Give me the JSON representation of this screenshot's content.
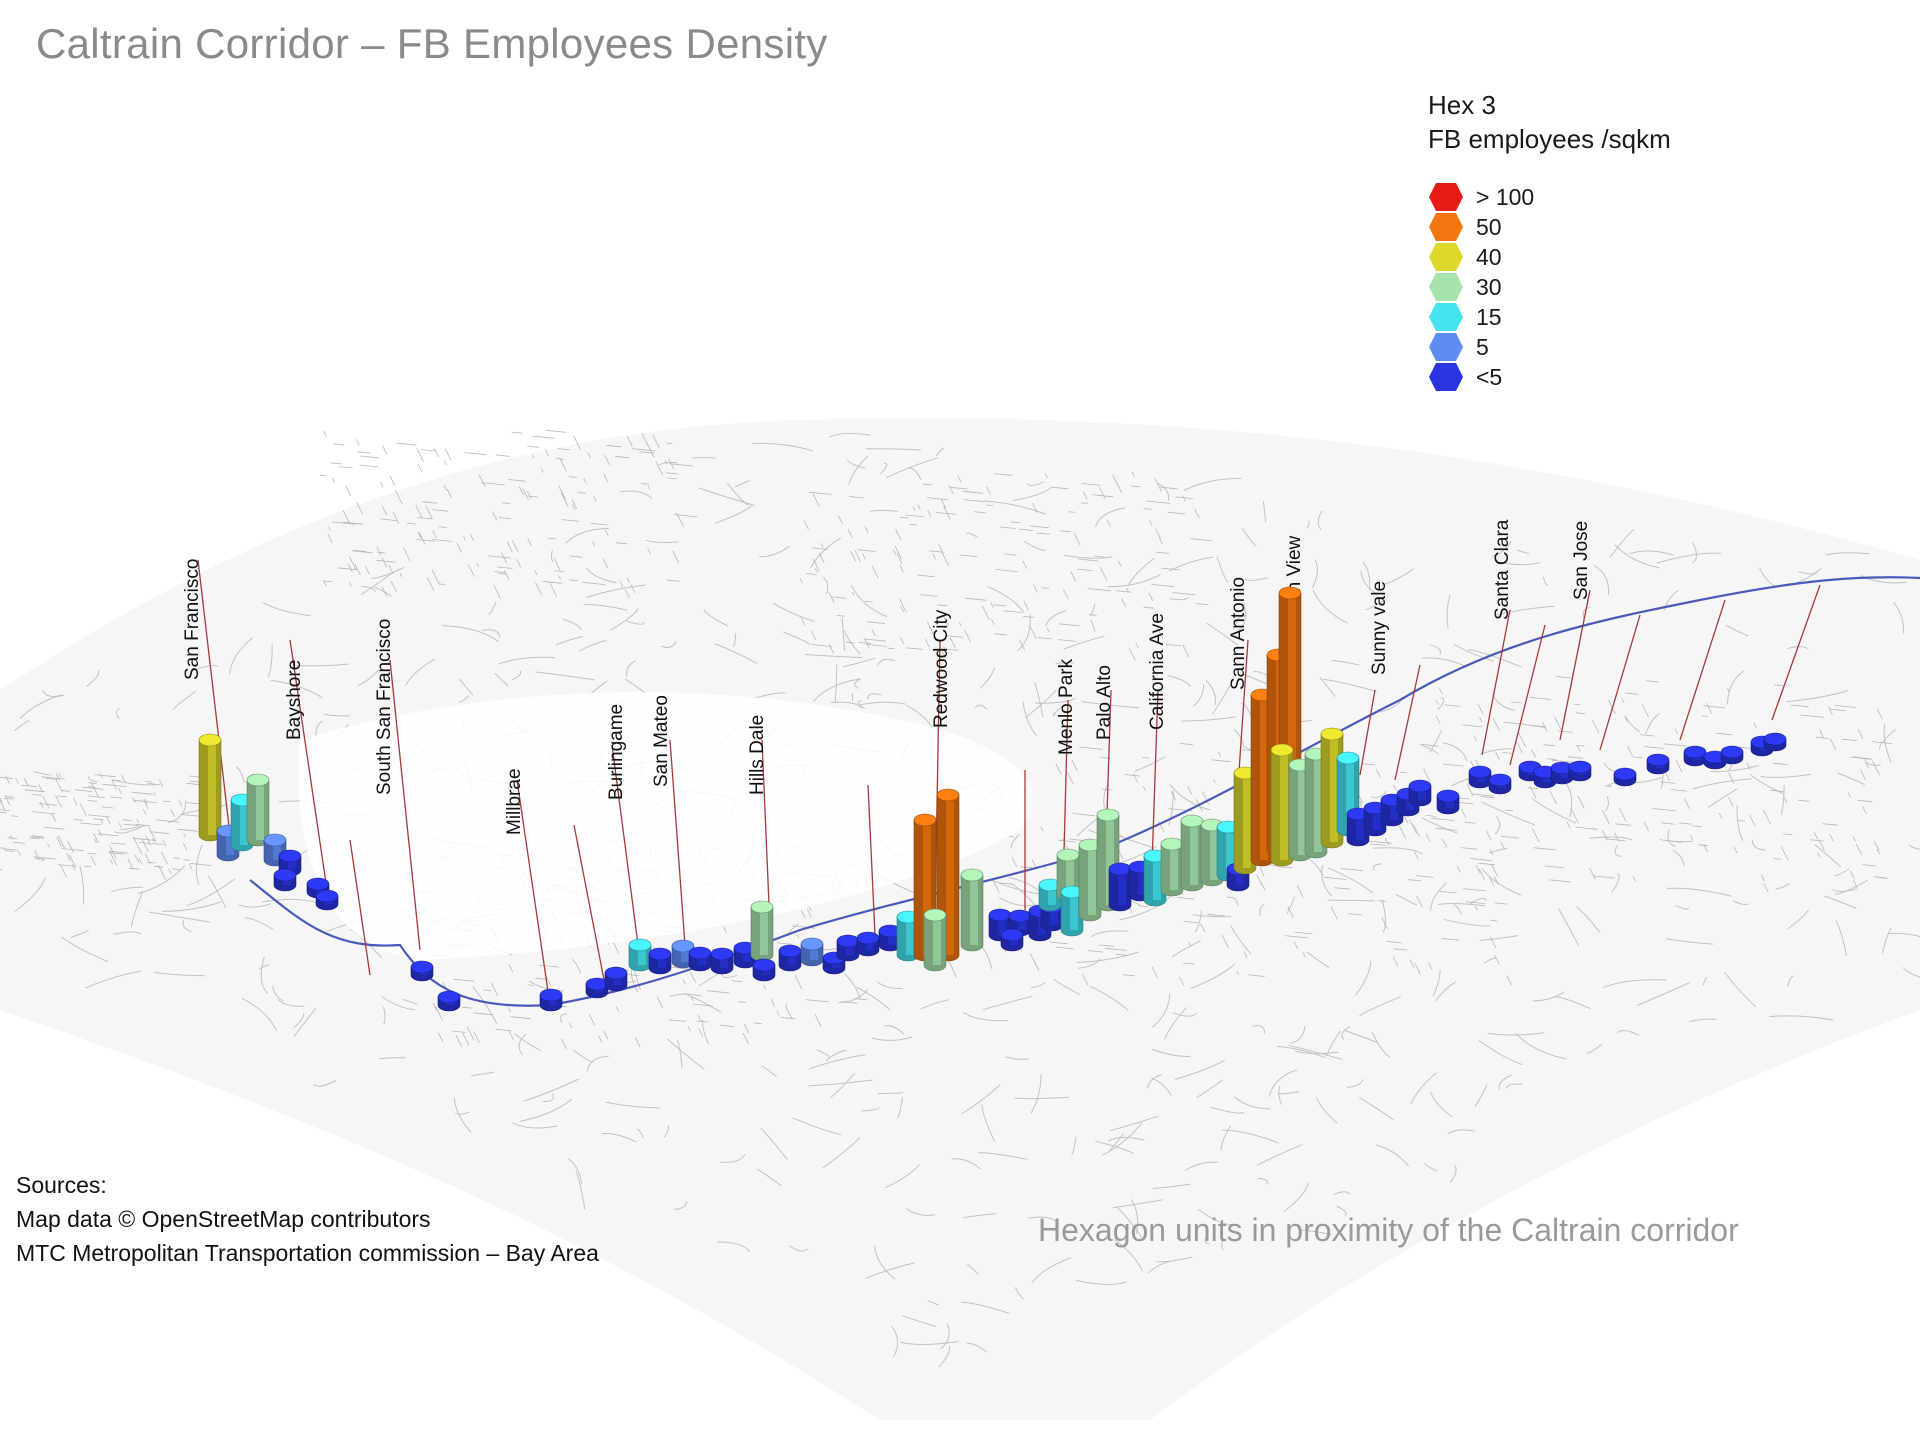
{
  "title": "Caltrain Corridor – FB Employees Density",
  "legend": {
    "title_line1": "Hex 3",
    "title_line2": "FB employees /sqkm",
    "items": [
      {
        "label": "> 100",
        "color": "#e81c16"
      },
      {
        "label": "50",
        "color": "#f2760f"
      },
      {
        "label": "40",
        "color": "#dcd92c"
      },
      {
        "label": "30",
        "color": "#a6e3ad"
      },
      {
        "label": "15",
        "color": "#44e3ef"
      },
      {
        "label": "5",
        "color": "#5e8cf2"
      },
      {
        "label": "<5",
        "color": "#2a35e2"
      }
    ]
  },
  "stations": [
    "San Francisco",
    "Bayshore",
    "South San Francisco",
    "Millbrae",
    "Burlingame",
    "San Mateo",
    "Hills Dale",
    "Redwood City",
    "Menlo Park",
    "Palo Alto",
    "California Ave",
    "Sann Antonio",
    "Mountain View",
    "Sunny vale",
    "Santa Clara",
    "San Jose"
  ],
  "sources": {
    "heading": "Sources:",
    "line1": "Map data © OpenStreetMap contributors",
    "line2": "MTC  Metropolitan Transportation commission – Bay Area"
  },
  "note": "Hexagon units in proximity of the Caltrain corridor",
  "colors": {
    "track": "#4a5ab8",
    "pin": "#a33a3a",
    "roads": "#bdbdbd"
  }
}
